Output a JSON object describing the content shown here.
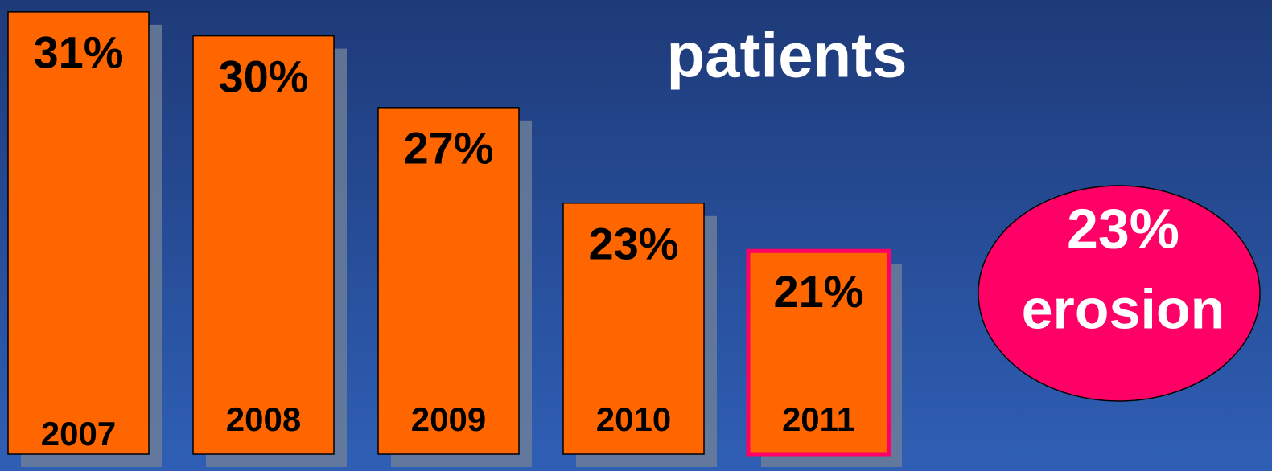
{
  "chart_data": {
    "type": "bar",
    "title": "patients",
    "categories": [
      "2007",
      "2008",
      "2009",
      "2010",
      "2011"
    ],
    "values": [
      31,
      30,
      27,
      23,
      21
    ],
    "value_labels": [
      "31%",
      "30%",
      "27%",
      "23%",
      "21%"
    ],
    "color": "#ff6600",
    "edgecolors": [
      "#000000",
      "#000000",
      "#000000",
      "#000000",
      "#ff0066"
    ],
    "ylim": [
      12.5,
      31.5
    ],
    "annotation": {
      "lines": [
        "23%",
        "erosion"
      ],
      "color": "#ff0066"
    }
  }
}
